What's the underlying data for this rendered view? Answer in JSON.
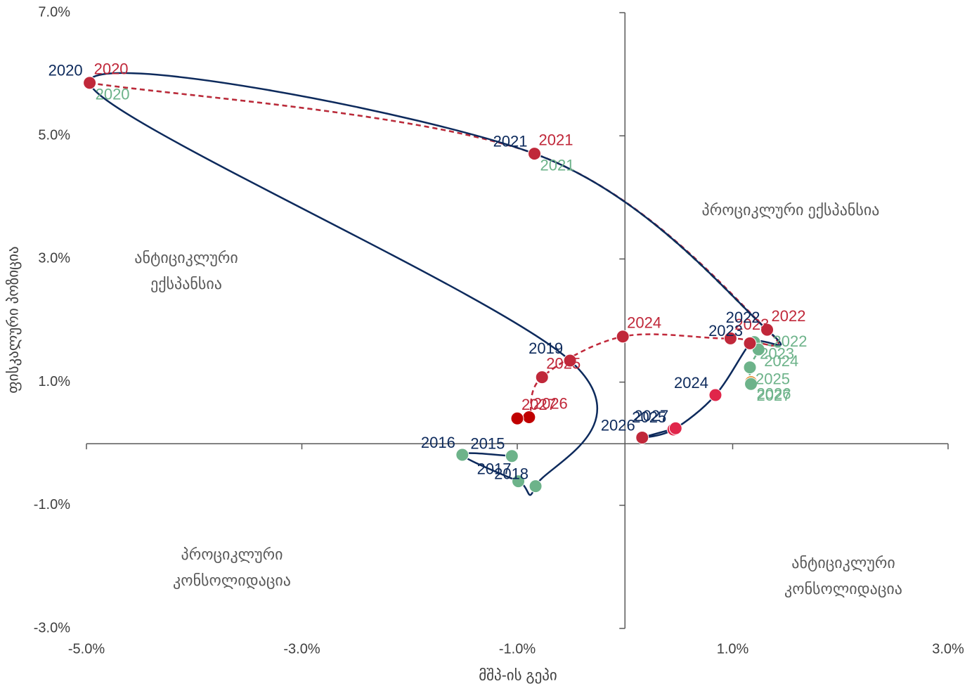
{
  "chart_data": {
    "type": "scatter",
    "xlabel": "მშპ-ის გეპი",
    "ylabel": "ფისკალური პოზიცია",
    "xlim": [
      -5,
      3
    ],
    "ylim": [
      -3,
      7
    ],
    "xticks": [
      {
        "value": -5,
        "label": "-5.0%"
      },
      {
        "value": -3,
        "label": "-3.0%"
      },
      {
        "value": -1,
        "label": "-1.0%"
      },
      {
        "value": 1,
        "label": "1.0%"
      },
      {
        "value": 3,
        "label": "3.0%"
      }
    ],
    "yticks": [
      {
        "value": -3,
        "label": "-3.0%"
      },
      {
        "value": -1,
        "label": "-1.0%"
      },
      {
        "value": 1,
        "label": "1.0%"
      },
      {
        "value": 3,
        "label": "3.0%"
      },
      {
        "value": 5,
        "label": "5.0%"
      },
      {
        "value": 7,
        "label": "7.0%"
      }
    ],
    "annotations": [
      [
        "პროციკლური ექსპანსია"
      ],
      [
        "ანტიციკლური",
        "ექსპანსია"
      ],
      [
        "პროციკლური",
        "კონსოლიდაცია"
      ],
      [
        "ანტიციკლური",
        "კონსოლიდაცია"
      ]
    ],
    "series": [
      {
        "color": "#6db38a",
        "line_style": "dashed",
        "labels": [
          "2020",
          "2021",
          "2022",
          "2023",
          "2024",
          "2025",
          "2026",
          "2027"
        ],
        "x": [
          -4.97,
          -0.84,
          1.32,
          1.2,
          1.24,
          1.16,
          1.17,
          1.17
        ],
        "values": [
          5.86,
          4.71,
          1.85,
          1.65,
          1.53,
          1.24,
          1.0,
          0.97
        ],
        "marker_colors": [
          "#6db38a",
          "#6db38a",
          "#6db38a",
          "#6db38a",
          "#6db38a",
          "#6db38a",
          "#e08a2c",
          "#6db38a"
        ]
      },
      {
        "color": "#c0283a",
        "line_style": "dashed",
        "labels": [
          "2020",
          "2021",
          "2022",
          "2023",
          "2024",
          "2025",
          "2026",
          "2027"
        ],
        "x": [
          -4.97,
          -0.84,
          1.32,
          0.98,
          -0.02,
          -0.77,
          -0.89,
          -1.0
        ],
        "values": [
          5.86,
          4.71,
          1.85,
          1.71,
          1.74,
          1.08,
          0.43,
          0.41
        ],
        "marker_colors": [
          "#c0283a",
          "#c0283a",
          "#c0283a",
          "#c0283a",
          "#c0283a",
          "#c0283a",
          "#c00000",
          "#c00000"
        ]
      },
      {
        "color": "#0d2a5c",
        "line_style": "solid",
        "labels": [
          "2015",
          "2016",
          "2017",
          "2018",
          "2019",
          "2020",
          "2021",
          "2022",
          "2023",
          "2024",
          "2025",
          "2026",
          "2027"
        ],
        "x": [
          -1.05,
          -1.51,
          -0.99,
          -0.83,
          -0.51,
          -4.97,
          -0.84,
          1.32,
          1.16,
          0.84,
          0.45,
          0.16,
          0.47
        ],
        "values": [
          -0.2,
          -0.18,
          -0.61,
          -0.69,
          1.35,
          5.86,
          4.71,
          1.85,
          1.63,
          0.79,
          0.23,
          0.1,
          0.25
        ],
        "marker_colors": [
          "#6db38a",
          "#6db38a",
          "#6db38a",
          "#6db38a",
          "#c0283a",
          "#c0283a",
          "#c0283a",
          "#c0283a",
          "#c0283a",
          "#e0264a",
          "#e0264a",
          "#c0283a",
          "#e0264a"
        ]
      }
    ]
  }
}
